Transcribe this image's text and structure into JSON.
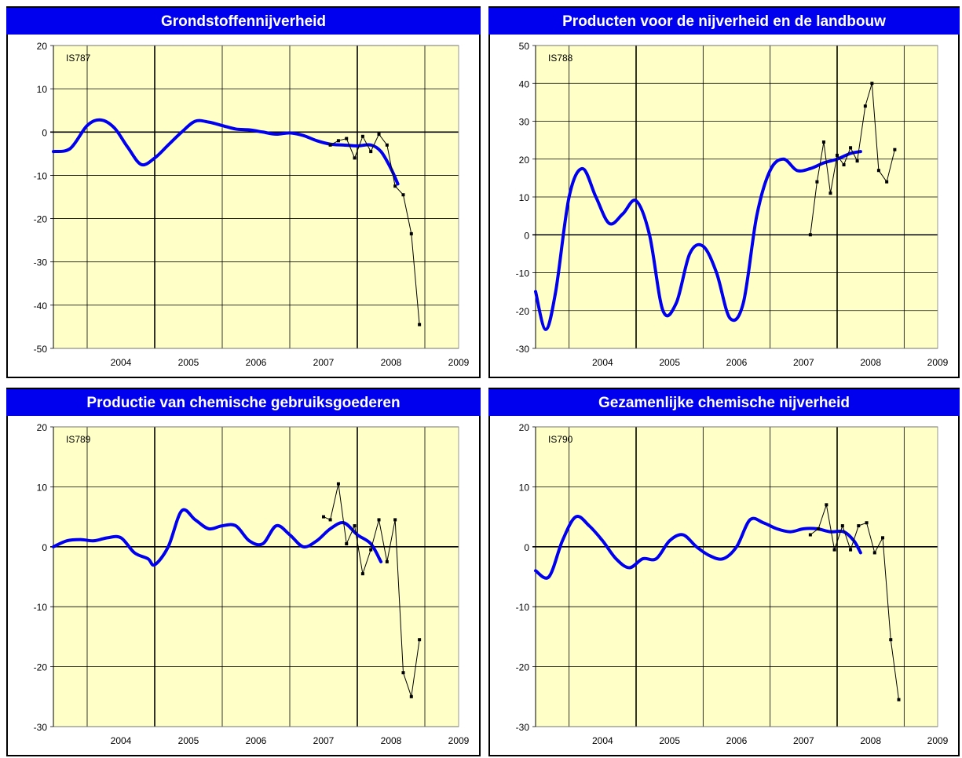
{
  "chart_data": [
    {
      "type": "line",
      "title": "Grondstoffennijverheid",
      "code": "IS787",
      "categories": [
        "2004",
        "2005",
        "2006",
        "2007",
        "2008",
        "2009"
      ],
      "ylim": [
        -50,
        20
      ],
      "yticks": [
        "20",
        "10",
        "0",
        "-10",
        "-20",
        "-30",
        "-40",
        "-50"
      ],
      "grid": true,
      "colors": {
        "plot_bg": "#ffffc8",
        "trend": "#0000ee",
        "monthly": "#000000"
      },
      "series": [
        {
          "x": [
            2003.5,
            2003.75,
            2004.0,
            2004.2,
            2004.4,
            2004.6,
            2004.8,
            2005.0,
            2005.2,
            2005.4,
            2005.6,
            2005.8,
            2006.0,
            2006.2,
            2006.4,
            2006.6,
            2006.8,
            2007.0,
            2007.2,
            2007.4,
            2007.6,
            2007.8,
            2008.0,
            2008.2,
            2008.35,
            2008.5,
            2008.6
          ],
          "values": [
            -4.5,
            -3.8,
            1.5,
            2.8,
            1.0,
            -3.5,
            -7.5,
            -6.0,
            -3.0,
            0.0,
            2.5,
            2.3,
            1.5,
            0.7,
            0.5,
            0.0,
            -0.5,
            -0.2,
            -0.8,
            -2.0,
            -2.8,
            -3.0,
            -3.2,
            -3.0,
            -4.5,
            -8.5,
            -12.0
          ]
        },
        {
          "x": [
            2007.6,
            2007.72,
            2007.84,
            2007.96,
            2008.08,
            2008.2,
            2008.32,
            2008.44,
            2008.56,
            2008.68,
            2008.8,
            2008.92
          ],
          "values": [
            -3.0,
            -2.0,
            -1.5,
            -6.0,
            -1.0,
            -4.5,
            -0.5,
            -3.0,
            -12.5,
            -14.5,
            -23.5,
            -44.5
          ]
        }
      ]
    },
    {
      "type": "line",
      "title": "Producten voor de nijverheid en de landbouw",
      "code": "IS788",
      "categories": [
        "2004",
        "2005",
        "2006",
        "2007",
        "2008",
        "2009"
      ],
      "ylim": [
        -30,
        50
      ],
      "yticks": [
        "50",
        "40",
        "30",
        "20",
        "10",
        "0",
        "-10",
        "-20",
        "-30"
      ],
      "grid": true,
      "colors": {
        "plot_bg": "#ffffc8",
        "trend": "#0000ee",
        "monthly": "#000000"
      },
      "series": [
        {
          "x": [
            2003.5,
            2003.65,
            2003.8,
            2004.0,
            2004.2,
            2004.4,
            2004.6,
            2004.8,
            2005.0,
            2005.2,
            2005.4,
            2005.6,
            2005.8,
            2006.0,
            2006.2,
            2006.4,
            2006.6,
            2006.8,
            2007.0,
            2007.2,
            2007.4,
            2007.6,
            2007.8,
            2008.0,
            2008.2,
            2008.35
          ],
          "values": [
            -15.0,
            -25.0,
            -15.0,
            10.0,
            17.5,
            10.0,
            3.0,
            5.5,
            9.0,
            0.0,
            -20.0,
            -18.0,
            -5.0,
            -3.0,
            -10.0,
            -22.0,
            -18.0,
            5.0,
            17.0,
            20.0,
            17.0,
            17.5,
            19.0,
            20.0,
            21.5,
            22.0
          ]
        },
        {
          "x": [
            2007.6,
            2007.7,
            2007.8,
            2007.9,
            2008.0,
            2008.1,
            2008.2,
            2008.3,
            2008.42,
            2008.52,
            2008.62,
            2008.74,
            2008.86
          ],
          "values": [
            0.0,
            14.0,
            24.5,
            11.0,
            21.0,
            18.5,
            23.0,
            19.5,
            34.0,
            40.0,
            17.0,
            14.0,
            22.5
          ]
        }
      ]
    },
    {
      "type": "line",
      "title": "Productie van chemische gebruiksgoederen",
      "code": "IS789",
      "categories": [
        "2004",
        "2005",
        "2006",
        "2007",
        "2008",
        "2009"
      ],
      "ylim": [
        -30,
        20
      ],
      "yticks": [
        "20",
        "10",
        "0",
        "-10",
        "-20",
        "-30"
      ],
      "grid": true,
      "colors": {
        "plot_bg": "#ffffc8",
        "trend": "#0000ee",
        "monthly": "#000000"
      },
      "series": [
        {
          "x": [
            2003.5,
            2003.7,
            2003.9,
            2004.1,
            2004.3,
            2004.5,
            2004.7,
            2004.9,
            2005.0,
            2005.2,
            2005.4,
            2005.6,
            2005.8,
            2006.0,
            2006.2,
            2006.4,
            2006.6,
            2006.8,
            2007.0,
            2007.2,
            2007.4,
            2007.6,
            2007.8,
            2008.0,
            2008.2,
            2008.35
          ],
          "values": [
            0.0,
            1.0,
            1.2,
            1.0,
            1.5,
            1.5,
            -1.0,
            -2.0,
            -3.0,
            0.0,
            6.0,
            4.5,
            3.0,
            3.5,
            3.5,
            1.0,
            0.5,
            3.5,
            2.0,
            0.0,
            1.0,
            3.0,
            4.0,
            2.0,
            0.5,
            -2.5
          ]
        },
        {
          "x": [
            2007.5,
            2007.6,
            2007.72,
            2007.84,
            2007.96,
            2008.08,
            2008.2,
            2008.32,
            2008.44,
            2008.56,
            2008.68,
            2008.8,
            2008.92
          ],
          "values": [
            5.0,
            4.5,
            10.5,
            0.5,
            3.5,
            -4.5,
            -0.5,
            4.5,
            -2.5,
            4.5,
            -21.0,
            -25.0,
            -15.5
          ]
        }
      ]
    },
    {
      "type": "line",
      "title": "Gezamenlijke chemische nijverheid",
      "code": "IS790",
      "categories": [
        "2004",
        "2005",
        "2006",
        "2007",
        "2008",
        "2009"
      ],
      "ylim": [
        -30,
        20
      ],
      "yticks": [
        "20",
        "10",
        "0",
        "-10",
        "-20",
        "-30"
      ],
      "grid": true,
      "colors": {
        "plot_bg": "#ffffc8",
        "trend": "#0000ee",
        "monthly": "#000000"
      },
      "series": [
        {
          "x": [
            2003.5,
            2003.7,
            2003.9,
            2004.1,
            2004.3,
            2004.5,
            2004.7,
            2004.9,
            2005.1,
            2005.3,
            2005.5,
            2005.7,
            2005.9,
            2006.1,
            2006.3,
            2006.5,
            2006.7,
            2006.9,
            2007.1,
            2007.3,
            2007.5,
            2007.7,
            2007.9,
            2008.1,
            2008.25,
            2008.35
          ],
          "values": [
            -4.0,
            -5.0,
            1.0,
            5.0,
            3.5,
            1.0,
            -2.0,
            -3.5,
            -2.0,
            -2.0,
            1.0,
            2.0,
            0.0,
            -1.5,
            -2.0,
            0.0,
            4.5,
            4.0,
            3.0,
            2.5,
            3.0,
            3.0,
            2.5,
            2.5,
            1.0,
            -1.0
          ]
        },
        {
          "x": [
            2007.6,
            2007.72,
            2007.84,
            2007.96,
            2008.08,
            2008.2,
            2008.32,
            2008.44,
            2008.56,
            2008.68,
            2008.8,
            2008.92
          ],
          "values": [
            2.0,
            3.0,
            7.0,
            -0.5,
            3.5,
            -0.5,
            3.5,
            4.0,
            -1.0,
            1.5,
            -15.5,
            -25.5
          ]
        }
      ]
    }
  ]
}
